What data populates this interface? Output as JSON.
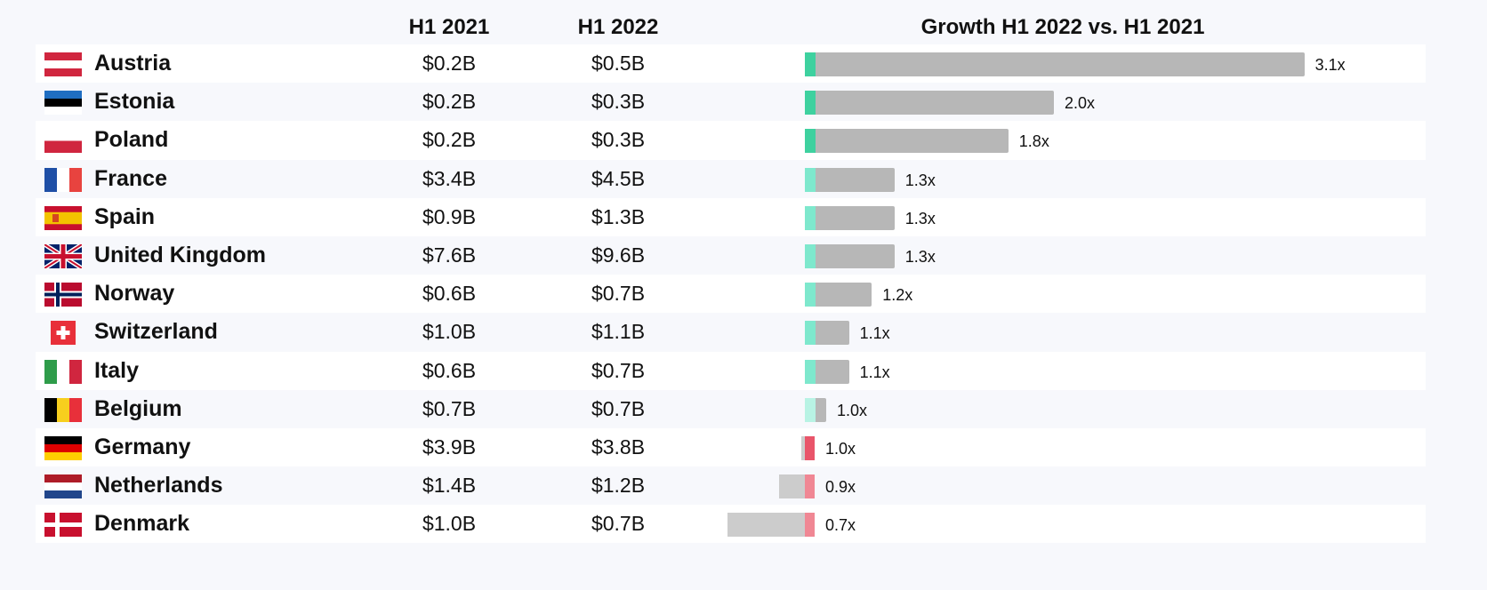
{
  "headers": {
    "col1": "H1 2021",
    "col2": "H1 2022",
    "col3": "Growth H1 2022 vs. H1 2021"
  },
  "chart_data": {
    "type": "table",
    "columns": [
      "H1 2021",
      "H1 2022",
      "Growth H1 2022 vs. H1 2021"
    ],
    "growth_axis_max": 3.1,
    "colors": {
      "growth_strong": "#3ed19f",
      "growth_medium": "#7ee8cd",
      "growth_weak": "#b8f3e4",
      "decline": "#e9556a",
      "decline_light": "#f08794",
      "bar_grey": "#b7b7b7",
      "bar_grey_light": "#cccccc"
    },
    "rows": [
      {
        "country": "Austria",
        "flag": "austria-flag-icon",
        "h1_2021": "$0.2B",
        "h1_2022": "$0.5B",
        "growth": 3.1,
        "growth_label": "3.1x"
      },
      {
        "country": "Estonia",
        "flag": "estonia-flag-icon",
        "h1_2021": "$0.2B",
        "h1_2022": "$0.3B",
        "growth": 2.0,
        "growth_label": "2.0x"
      },
      {
        "country": "Poland",
        "flag": "poland-flag-icon",
        "h1_2021": "$0.2B",
        "h1_2022": "$0.3B",
        "growth": 1.8,
        "growth_label": "1.8x"
      },
      {
        "country": "France",
        "flag": "france-flag-icon",
        "h1_2021": "$3.4B",
        "h1_2022": "$4.5B",
        "growth": 1.3,
        "growth_label": "1.3x"
      },
      {
        "country": "Spain",
        "flag": "spain-flag-icon",
        "h1_2021": "$0.9B",
        "h1_2022": "$1.3B",
        "growth": 1.3,
        "growth_label": "1.3x"
      },
      {
        "country": "United Kingdom",
        "flag": "uk-flag-icon",
        "h1_2021": "$7.6B",
        "h1_2022": "$9.6B",
        "growth": 1.3,
        "growth_label": "1.3x"
      },
      {
        "country": "Norway",
        "flag": "norway-flag-icon",
        "h1_2021": "$0.6B",
        "h1_2022": "$0.7B",
        "growth": 1.2,
        "growth_label": "1.2x"
      },
      {
        "country": "Switzerland",
        "flag": "switzerland-flag-icon",
        "h1_2021": "$1.0B",
        "h1_2022": "$1.1B",
        "growth": 1.1,
        "growth_label": "1.1x"
      },
      {
        "country": "Italy",
        "flag": "italy-flag-icon",
        "h1_2021": "$0.6B",
        "h1_2022": "$0.7B",
        "growth": 1.1,
        "growth_label": "1.1x"
      },
      {
        "country": "Belgium",
        "flag": "belgium-flag-icon",
        "h1_2021": "$0.7B",
        "h1_2022": "$0.7B",
        "growth": 1.0,
        "growth_label": "1.0x"
      },
      {
        "country": "Germany",
        "flag": "germany-flag-icon",
        "h1_2021": "$3.9B",
        "h1_2022": "$3.8B",
        "growth": 1.0,
        "growth_label": "1.0x"
      },
      {
        "country": "Netherlands",
        "flag": "netherlands-flag-icon",
        "h1_2021": "$1.4B",
        "h1_2022": "$1.2B",
        "growth": 0.9,
        "growth_label": "0.9x"
      },
      {
        "country": "Denmark",
        "flag": "denmark-flag-icon",
        "h1_2021": "$1.0B",
        "h1_2022": "$0.7B",
        "growth": 0.7,
        "growth_label": "0.7x"
      }
    ]
  }
}
